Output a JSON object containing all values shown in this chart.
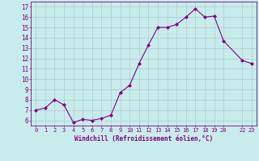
{
  "x": [
    0,
    1,
    2,
    3,
    4,
    5,
    6,
    7,
    8,
    9,
    10,
    11,
    12,
    13,
    14,
    15,
    16,
    17,
    18,
    19,
    20,
    22,
    23
  ],
  "y": [
    7.0,
    7.2,
    8.0,
    7.5,
    5.8,
    6.1,
    6.0,
    6.2,
    6.5,
    8.7,
    9.4,
    11.5,
    13.3,
    15.0,
    15.0,
    15.3,
    16.0,
    16.8,
    16.0,
    16.1,
    13.7,
    11.8,
    11.5
  ],
  "line_color": "#800080",
  "marker": "D",
  "marker_size": 2.0,
  "bg_color": "#c8ecec",
  "grid_color": "#aacccc",
  "xlabel": "Windchill (Refroidissement éolien,°C)",
  "xlabel_color": "#800080",
  "tick_color": "#800080",
  "axis_line_color": "#800080",
  "ylim": [
    5.5,
    17.5
  ],
  "yticks": [
    6,
    7,
    8,
    9,
    10,
    11,
    12,
    13,
    14,
    15,
    16,
    17
  ],
  "xticks": [
    0,
    1,
    2,
    3,
    4,
    5,
    6,
    7,
    8,
    9,
    10,
    11,
    12,
    13,
    14,
    15,
    16,
    17,
    18,
    19,
    20,
    22,
    23
  ],
  "xtick_labels": [
    "0",
    "1",
    "2",
    "3",
    "4",
    "5",
    "6",
    "7",
    "8",
    "9",
    "10",
    "11",
    "12",
    "13",
    "14",
    "15",
    "16",
    "17",
    "18",
    "19",
    "20",
    "22",
    "23"
  ]
}
